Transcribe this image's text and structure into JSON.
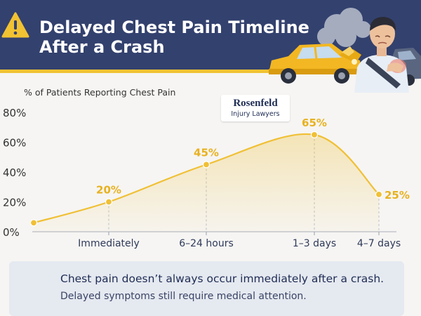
{
  "header": {
    "title_line1": "Delayed Chest Pain Timeline",
    "title_line2": "After a Crash",
    "warning_icon": "warning-triangle-icon",
    "illustration": "car-crash-man-holding-chest",
    "colors": {
      "banner": "#33416e",
      "stripe": "#f1c232",
      "title": "#ffffff"
    }
  },
  "logo": {
    "name": "Rosenfeld",
    "subtitle": "Injury Lawyers"
  },
  "chart_data": {
    "type": "line",
    "ylabel": "% of Patients Reporting Chest Pain",
    "xlabel": "",
    "ylim": [
      0,
      80
    ],
    "yticks": [
      "0%",
      "20%",
      "40%",
      "60%",
      "80%"
    ],
    "ytick_values": [
      0,
      20,
      40,
      60,
      80
    ],
    "grid": false,
    "area_fill": true,
    "color": "#f0c035",
    "points": [
      {
        "category": "",
        "value": 6,
        "label": ""
      },
      {
        "category": "Immediately",
        "value": 20,
        "label": "20%"
      },
      {
        "category": "6–24 hours",
        "value": 45,
        "label": "45%"
      },
      {
        "category": "1–3 days",
        "value": 65,
        "label": "65%"
      },
      {
        "category": "4–7 days",
        "value": 25,
        "label": "25%"
      }
    ]
  },
  "note": {
    "line1": "Chest pain doesn’t always occur immediately after a crash.",
    "line2": "Delayed symptoms still require medical attention."
  }
}
